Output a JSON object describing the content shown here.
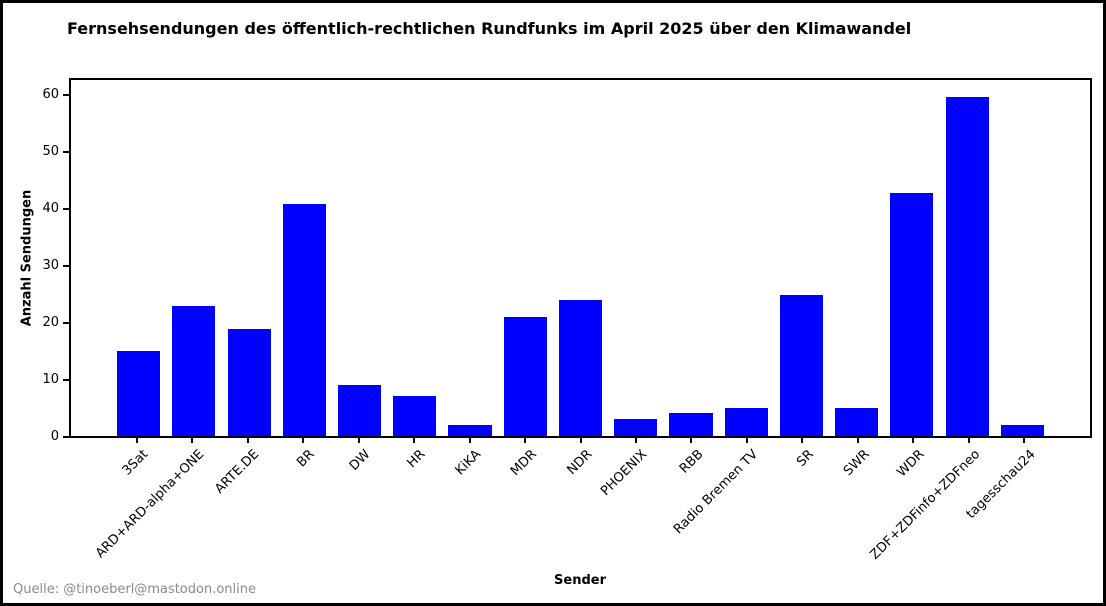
{
  "chart_data": {
    "type": "bar",
    "title": "Fernsehsendungen des öffentlich-rechtlichen Rundfunks im April 2025 über den Klimawandel",
    "xlabel": "Sender",
    "ylabel": "Anzahl Sendungen",
    "categories": [
      "3Sat",
      "ARD+ARD-alpha+ONE",
      "ARTE.DE",
      "BR",
      "DW",
      "HR",
      "KiKA",
      "MDR",
      "NDR",
      "PHOENIX",
      "RBB",
      "Radio Bremen TV",
      "SR",
      "SWR",
      "WDR",
      "ZDF+ZDFinfo+ZDFneo",
      "tagesschau24"
    ],
    "values": [
      15,
      23,
      19,
      41,
      9,
      7,
      2,
      21,
      24,
      3,
      4,
      5,
      25,
      5,
      43,
      60,
      2
    ],
    "yticks": [
      0,
      10,
      20,
      30,
      40,
      50,
      60
    ],
    "ylim": [
      0,
      63
    ],
    "grid": false,
    "legend_position": "none",
    "bar_color": "#0000ff"
  },
  "source": "Quelle: @tinoeberl@mastodon.online",
  "colors": {
    "bar": "#0000ff",
    "axis": "#000000",
    "source_text": "#8a8a8a",
    "frame": "#000000",
    "background": "#ffffff"
  }
}
